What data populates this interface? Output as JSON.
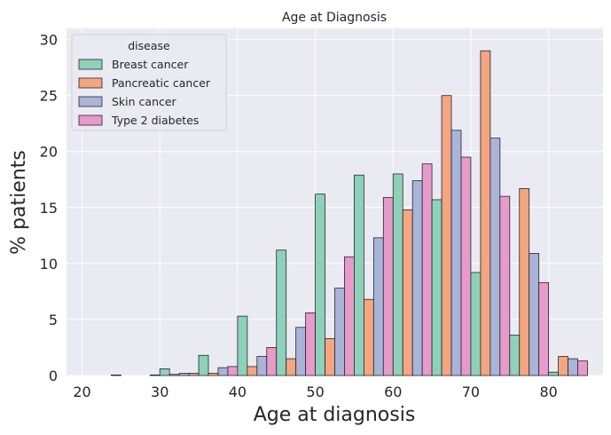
{
  "chart_data": {
    "type": "bar",
    "title": "Age at Diagnosis",
    "xlabel": "Age at diagnosis",
    "ylabel": "% patients",
    "xlim": [
      18,
      87
    ],
    "ylim": [
      0,
      31
    ],
    "xticks": [
      "20",
      "30",
      "40",
      "50",
      "60",
      "70",
      "80"
    ],
    "yticks": [
      "0",
      "5",
      "10",
      "15",
      "20",
      "25",
      "30"
    ],
    "grid": true,
    "legend_title": "disease",
    "legend_position": "top-left",
    "bin_starts": [
      20,
      25,
      30,
      35,
      40,
      45,
      50,
      55,
      60,
      65,
      70,
      75,
      80
    ],
    "bin_width": 5,
    "series": [
      {
        "name": "Breast cancer",
        "color": "#8ed1bb",
        "values": [
          0,
          0,
          0.6,
          1.8,
          5.3,
          11.2,
          16.2,
          17.9,
          18.0,
          15.7,
          9.2,
          3.6,
          0.3
        ]
      },
      {
        "name": "Pancreatic cancer",
        "color": "#f4a582",
        "values": [
          0,
          0,
          0.1,
          0.2,
          0.8,
          1.5,
          3.3,
          6.8,
          14.8,
          25.0,
          29.0,
          16.7,
          1.7
        ]
      },
      {
        "name": "Skin cancer",
        "color": "#a9b4d9",
        "values": [
          0,
          0,
          0.2,
          0.7,
          1.7,
          4.3,
          7.8,
          12.3,
          17.4,
          21.9,
          21.2,
          10.9,
          1.5
        ]
      },
      {
        "name": "Type 2 diabetes",
        "color": "#e69bcb",
        "values": [
          0.05,
          0.05,
          0.2,
          0.8,
          2.5,
          5.6,
          10.6,
          15.9,
          18.9,
          19.5,
          16.0,
          8.3,
          1.3
        ]
      }
    ]
  }
}
